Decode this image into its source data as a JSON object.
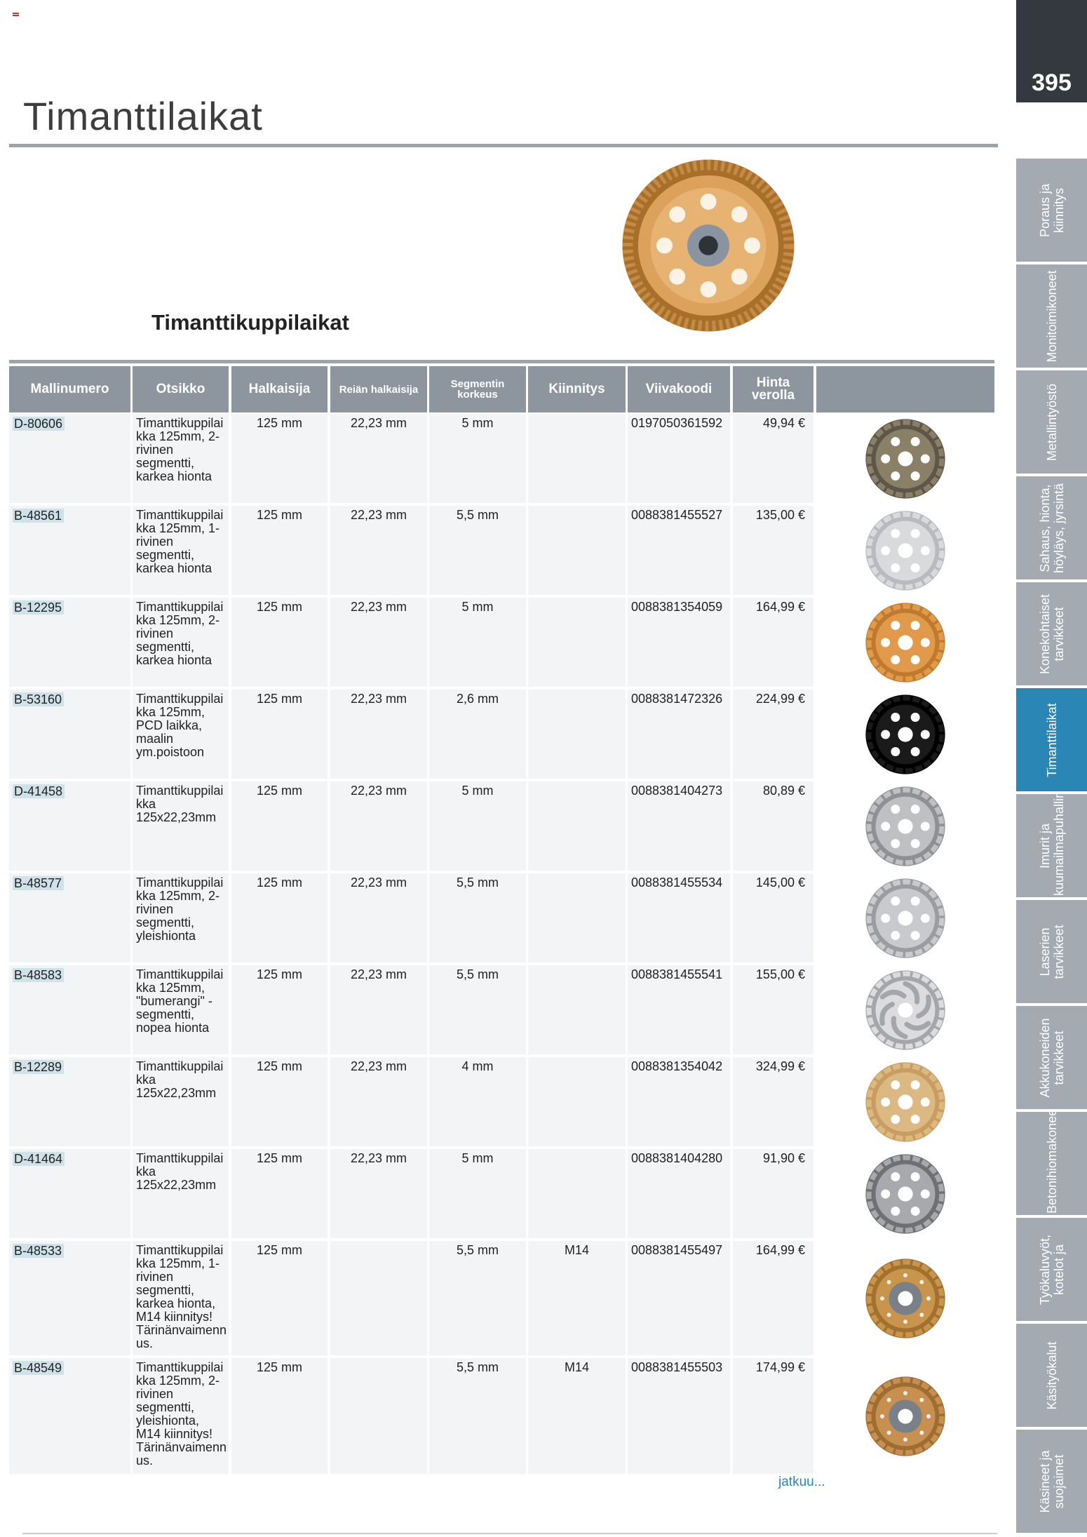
{
  "page": {
    "title": "Timanttilaikat",
    "number": "395",
    "section_title": "Timanttikuppilaikat",
    "continued": "jatkuu..."
  },
  "nav": {
    "tabs": [
      {
        "label": "Poraus ja kiinnitys",
        "active": false
      },
      {
        "label": "Monitoimikoneet",
        "active": false
      },
      {
        "label": "Metallintyöstö",
        "active": false
      },
      {
        "label": "Sahaus, hionta, höyläys, jyrsintä",
        "active": false
      },
      {
        "label": "Konekohtaiset tarvikkeet",
        "active": false
      },
      {
        "label": "Timanttilaikat",
        "active": true
      },
      {
        "label": "Imurit ja kuumailmapuhallin",
        "active": false
      },
      {
        "label": "Laserien tarvikkeet",
        "active": false
      },
      {
        "label": "Akkukoneiden tarvikkeet",
        "active": false
      },
      {
        "label": "Betonihiomakoneet",
        "active": false
      },
      {
        "label": "Työkaluvyöt, kotelot ja",
        "active": false
      },
      {
        "label": "Käsityökalut",
        "active": false
      },
      {
        "label": "Käsineet ja suojaimet",
        "active": false
      }
    ]
  },
  "table": {
    "headers": {
      "model": "Mallinumero",
      "title": "Otsikko",
      "diameter": "Halkaisija",
      "bore": "Reiän halkaisija",
      "segment": "Segmentin korkeus",
      "mount": "Kiinnitys",
      "barcode": "Viivakoodi",
      "price": "Hinta verolla"
    },
    "rows": [
      {
        "model": "D-80606",
        "title": "Timanttikuppilai kka 125mm, 2-rivinen segmentti, karkea hionta",
        "diameter": "125 mm",
        "bore": "22,23 mm",
        "segment": "5 mm",
        "mount": "",
        "barcode": "0197050361592",
        "price": "49,94 €",
        "disc": {
          "color": "#8a8068",
          "rim": "#5e5648",
          "style": "holes"
        }
      },
      {
        "model": "B-48561",
        "title": "Timanttikuppilai kka 125mm, 1-rivinen segmentti, karkea hionta",
        "diameter": "125 mm",
        "bore": "22,23 mm",
        "segment": "5,5 mm",
        "mount": "",
        "barcode": "0088381455527",
        "price": "135,00 €",
        "disc": {
          "color": "#d9dadc",
          "rim": "#b8babd",
          "style": "holes"
        }
      },
      {
        "model": "B-12295",
        "title": "Timanttikuppilai kka 125mm, 2-rivinen segmentti, karkea hionta",
        "diameter": "125 mm",
        "bore": "22,23 mm",
        "segment": "5 mm",
        "mount": "",
        "barcode": "0088381354059",
        "price": "164,99 €",
        "disc": {
          "color": "#e09a4a",
          "rim": "#c07a30",
          "style": "holes"
        }
      },
      {
        "model": "B-53160",
        "title": "Timanttikuppilai kka 125mm, PCD laikka, maalin ym.poistoon",
        "diameter": "125 mm",
        "bore": "22,23 mm",
        "segment": "2,6 mm",
        "mount": "",
        "barcode": "0088381472326",
        "price": "224,99 €",
        "disc": {
          "color": "#1a1a1a",
          "rim": "#000000",
          "style": "holes"
        }
      },
      {
        "model": "D-41458",
        "title": "Timanttikuppilai kka 125x22,23mm",
        "diameter": "125 mm",
        "bore": "22,23 mm",
        "segment": "5 mm",
        "mount": "",
        "barcode": "0088381404273",
        "price": "80,89 €",
        "disc": {
          "color": "#bfc0c2",
          "rim": "#8e9093",
          "style": "holes"
        }
      },
      {
        "model": "B-48577",
        "title": "Timanttikuppilai kka 125mm, 2-rivinen segmentti, yleishionta",
        "diameter": "125 mm",
        "bore": "22,23 mm",
        "segment": "5,5 mm",
        "mount": "",
        "barcode": "0088381455534",
        "price": "145,00 €",
        "disc": {
          "color": "#c9cace",
          "rim": "#9a9ca0",
          "style": "holes"
        }
      },
      {
        "model": "B-48583",
        "title": "Timanttikuppilai kka 125mm, \"bumerangi\" -segmentti, nopea hionta",
        "diameter": "125 mm",
        "bore": "22,23 mm",
        "segment": "5,5 mm",
        "mount": "",
        "barcode": "0088381455541",
        "price": "155,00 €",
        "disc": {
          "color": "#dcdcde",
          "rim": "#a5a6a9",
          "style": "boomerang"
        }
      },
      {
        "model": "B-12289",
        "title": "Timanttikuppilai kka 125x22,23mm",
        "diameter": "125 mm",
        "bore": "22,23 mm",
        "segment": "4 mm",
        "mount": "",
        "barcode": "0088381354042",
        "price": "324,99 €",
        "disc": {
          "color": "#dcb883",
          "rim": "#c89d5f",
          "style": "holes"
        }
      },
      {
        "model": "D-41464",
        "title": "Timanttikuppilai kka 125x22,23mm",
        "diameter": "125 mm",
        "bore": "22,23 mm",
        "segment": "5 mm",
        "mount": "",
        "barcode": "0088381404280",
        "price": "91,90 €",
        "disc": {
          "color": "#a7a9ad",
          "rim": "#6e7074",
          "style": "holes"
        }
      },
      {
        "model": "B-48533",
        "title": "Timanttikuppilai kka 125mm, 1-rivinen segmentti, karkea hionta, M14 kiinnitys! Tärinänvaimenn us.",
        "diameter": "125 mm",
        "bore": "",
        "segment": "5,5 mm",
        "mount": "M14",
        "barcode": "0088381455497",
        "price": "164,99 €",
        "disc": {
          "color": "#c9944c",
          "rim": "#a3712f",
          "style": "hub"
        }
      },
      {
        "model": "B-48549",
        "title": "Timanttikuppilai kka 125mm, 2-rivinen segmentti, yleishionta, M14 kiinnitys! Tärinänvaimenn us.",
        "diameter": "125 mm",
        "bore": "",
        "segment": "5,5 mm",
        "mount": "M14",
        "barcode": "0088381455503",
        "price": "174,99 €",
        "disc": {
          "color": "#c79050",
          "rim": "#9f6d31",
          "style": "hub"
        }
      }
    ]
  }
}
